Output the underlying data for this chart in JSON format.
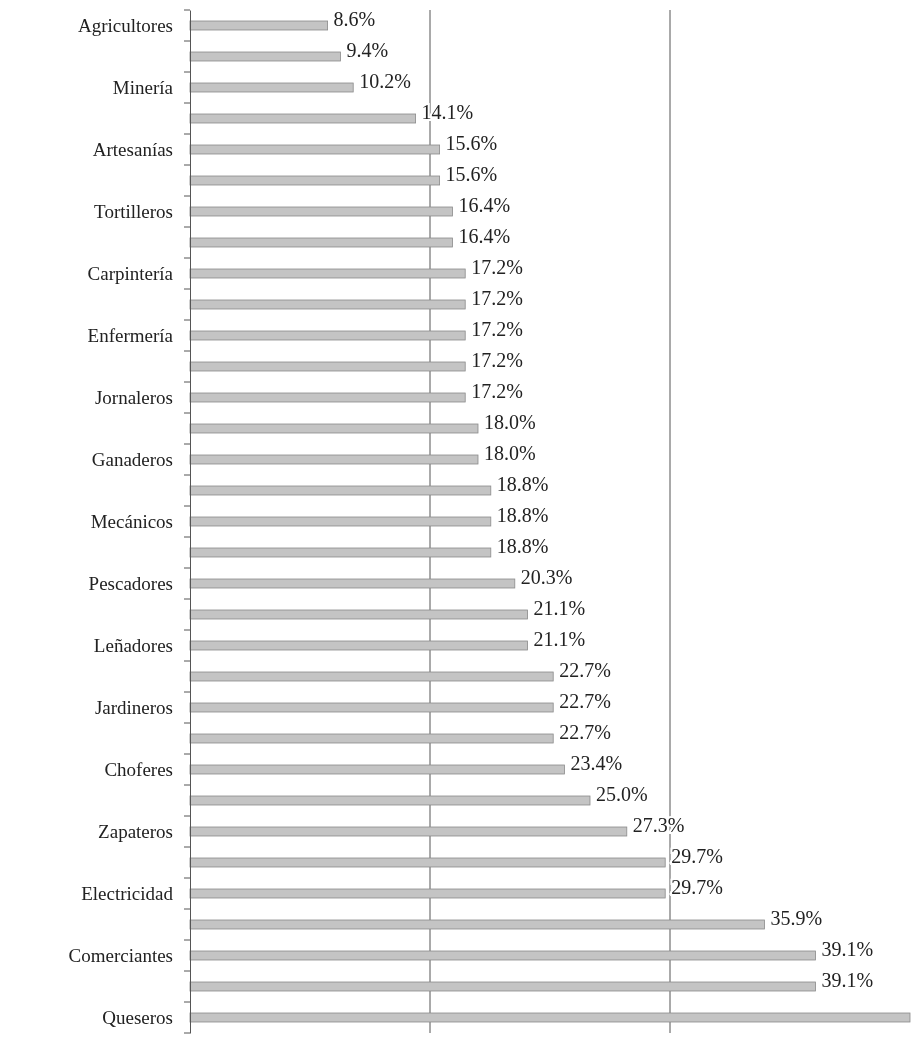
{
  "chart_data": {
    "type": "bar",
    "orientation": "horizontal",
    "categories": [
      "Agricultores",
      null,
      "Minería",
      null,
      "Artesanías",
      null,
      "Tortilleros",
      null,
      "Carpintería",
      null,
      "Enfermería",
      null,
      "Jornaleros",
      null,
      "Ganaderos",
      null,
      "Mecánicos",
      null,
      "Pescadores",
      null,
      "Leñadores",
      null,
      "Jardineros",
      null,
      "Choferes",
      null,
      "Zapateros",
      null,
      "Electricidad",
      null,
      "Comerciantes",
      null,
      "Queseros"
    ],
    "values": [
      8.6,
      9.4,
      10.2,
      14.1,
      15.6,
      15.6,
      16.4,
      16.4,
      17.2,
      17.2,
      17.2,
      17.2,
      17.2,
      18.0,
      18.0,
      18.8,
      18.8,
      18.8,
      20.3,
      21.1,
      21.1,
      22.7,
      22.7,
      22.7,
      23.4,
      25.0,
      27.3,
      29.7,
      29.7,
      35.9,
      39.1,
      39.1,
      45
    ],
    "value_labels": [
      "8.6%",
      "9.4%",
      "10.2%",
      "14.1%",
      "15.6%",
      "15.6%",
      "16.4%",
      "16.4%",
      "17.2%",
      "17.2%",
      "17.2%",
      "17.2%",
      "17.2%",
      "18.0%",
      "18.0%",
      "18.8%",
      "18.8%",
      "18.8%",
      "20.3%",
      "21.1%",
      "21.1%",
      "22.7%",
      "22.7%",
      "22.7%",
      "23.4%",
      "25.0%",
      "27.3%",
      "29.7%",
      "29.7%",
      "35.9%",
      "39.1%",
      "39.1%",
      null
    ],
    "color": "#c4c4c4",
    "xlim": [
      0,
      45
    ],
    "ref_lines": [
      {
        "axis": "x",
        "value": 15,
        "color": "#555555"
      },
      {
        "axis": "x",
        "value": 30,
        "color": "#555555"
      }
    ],
    "tick_labels": "y"
  }
}
